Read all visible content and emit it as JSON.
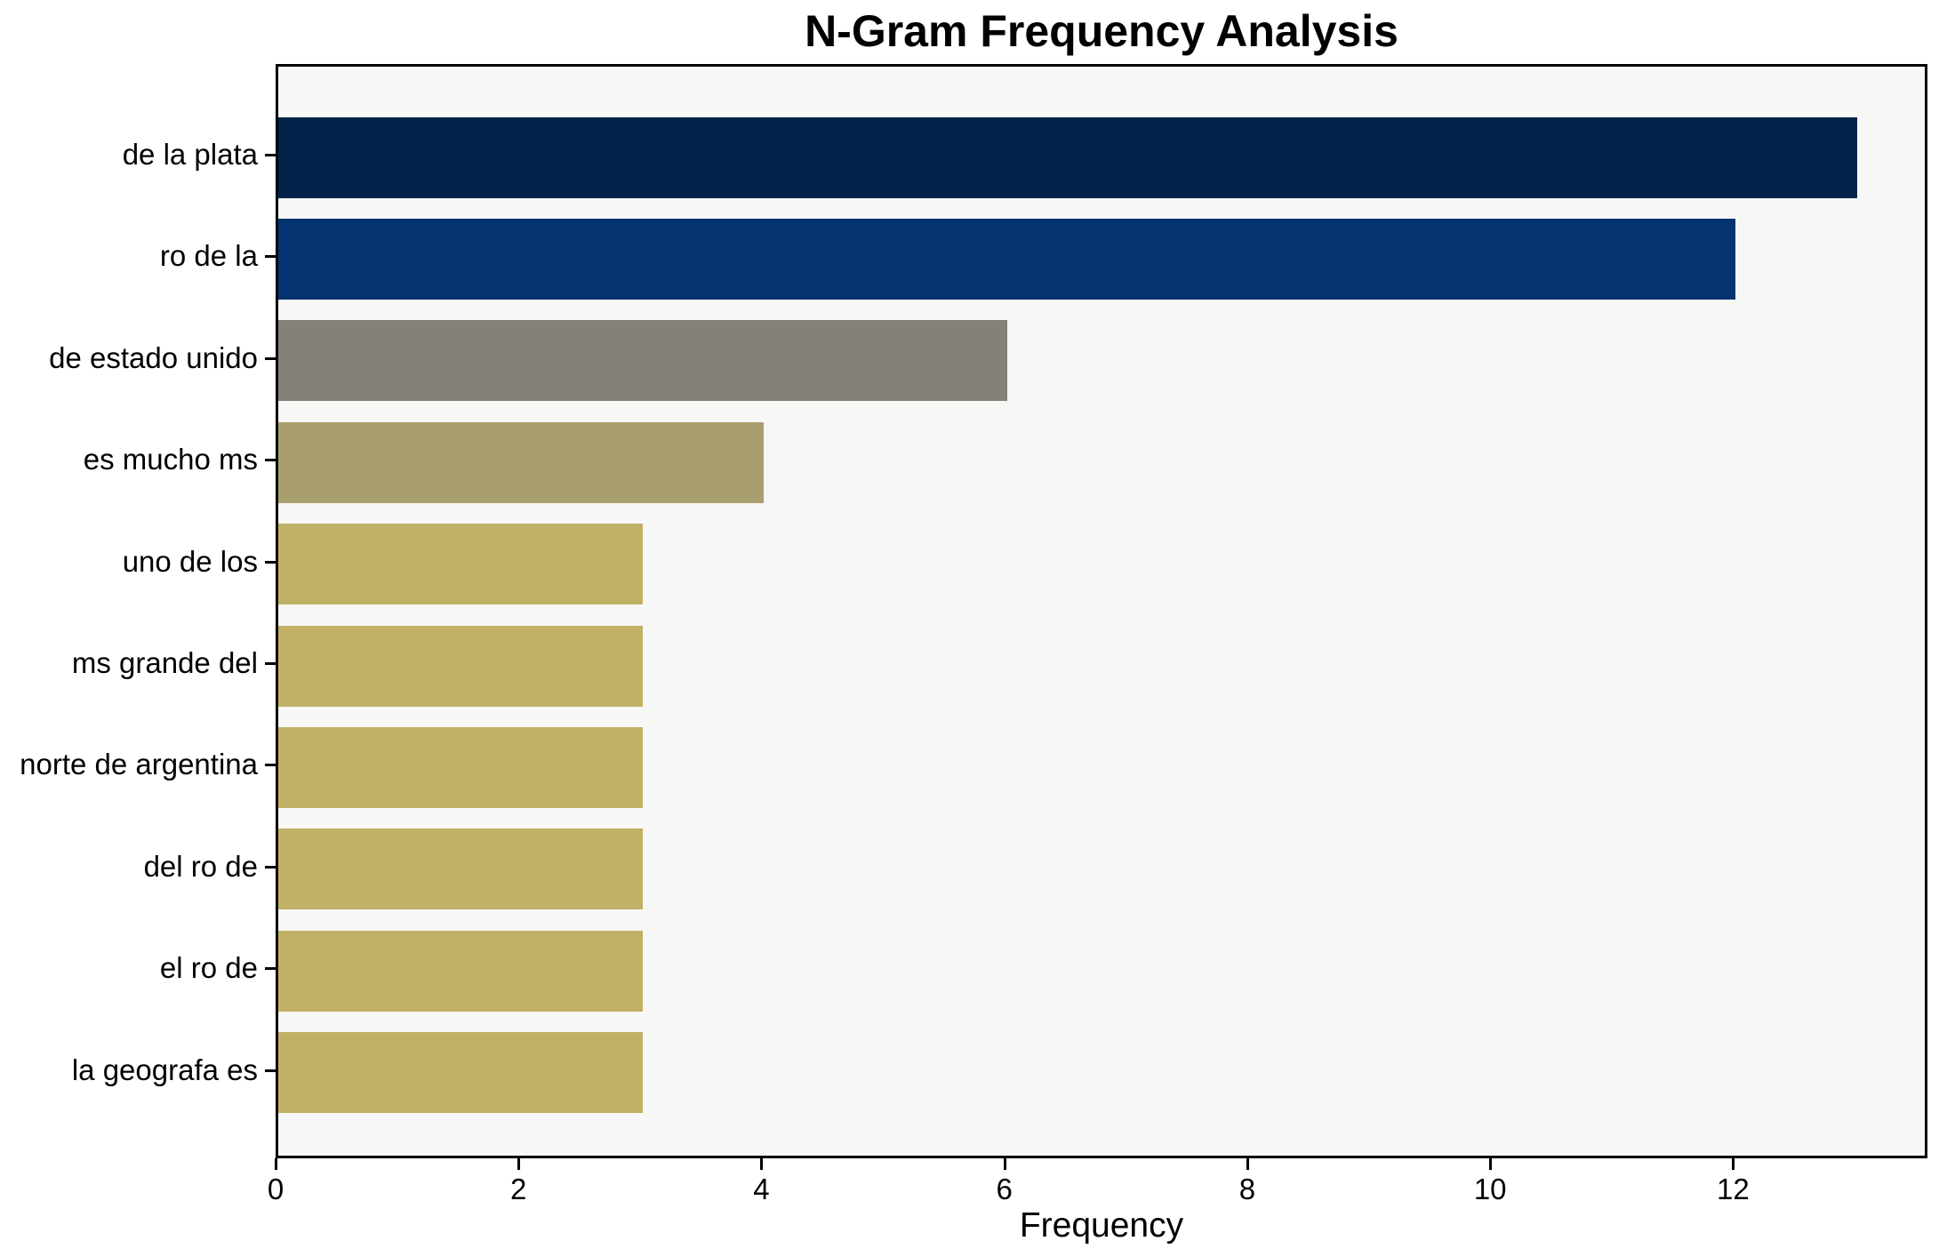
{
  "chart_data": {
    "type": "bar",
    "orientation": "horizontal",
    "title": "N-Gram Frequency Analysis",
    "xlabel": "Frequency",
    "ylabel": "",
    "categories": [
      "de la plata",
      "ro de la",
      "de estado unido",
      "es mucho ms",
      "uno de los",
      "ms grande del",
      "norte de argentina",
      "del ro de",
      "el ro de",
      "la geografa es"
    ],
    "values": [
      13,
      12,
      6,
      4,
      3,
      3,
      3,
      3,
      3,
      3
    ],
    "bar_colors": [
      "#03224a",
      "#043371",
      "#84807a",
      "#a99e6e",
      "#c1b166",
      "#c1b166",
      "#c1b166",
      "#c1b166",
      "#c1b166",
      "#c1b166"
    ],
    "xticks": [
      0,
      2,
      4,
      6,
      8,
      10,
      12
    ],
    "xlim": [
      0,
      13.6
    ],
    "grid": false,
    "legend": null,
    "plot_background": "#f7f7f6",
    "figure_background": "#ffffff",
    "spine_color": "#000000",
    "text_color": "#000000"
  }
}
